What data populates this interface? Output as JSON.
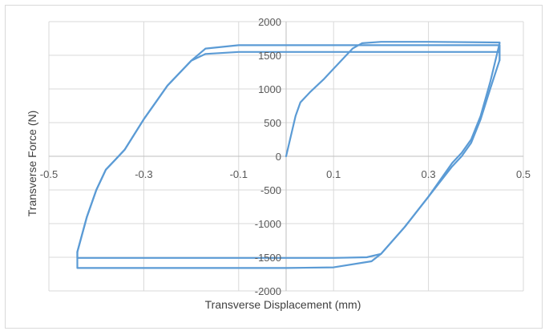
{
  "chart_data": {
    "type": "line",
    "title": "",
    "xlabel": "Transverse Displacement (mm)",
    "ylabel": "Transverse Force (N)",
    "xlim": [
      -0.5,
      0.5
    ],
    "ylim": [
      -2000,
      2000
    ],
    "x_ticks": [
      -0.5,
      -0.3,
      -0.1,
      0.1,
      0.3,
      0.5
    ],
    "x_tick_labels": [
      "-0.5",
      "-0.3",
      "-0.1",
      "0.1",
      "0.3",
      "0.5"
    ],
    "y_ticks": [
      -2000,
      -1500,
      -1000,
      -500,
      0,
      500,
      1000,
      1500,
      2000
    ],
    "y_tick_labels": [
      "-2000",
      "-1500",
      "-1000",
      "-500",
      "0",
      "500",
      "1000",
      "1500",
      "2000"
    ],
    "grid": true,
    "legend": "none",
    "color": "#5b9bd5",
    "series": [
      {
        "x": [
          0,
          0.01,
          0.02,
          0.03,
          0.05,
          0.08,
          0.1,
          0.12,
          0.14,
          0.16,
          0.2,
          0.3,
          0.45
        ],
        "y": [
          0,
          300,
          600,
          800,
          950,
          1150,
          1300,
          1450,
          1600,
          1680,
          1700,
          1700,
          1690
        ]
      },
      {
        "x": [
          0.45,
          0.43,
          0.41,
          0.39,
          0.37,
          0.35,
          0.3,
          0.25,
          0.2,
          0.18,
          0.1,
          0,
          -0.2,
          -0.44,
          -0.44
        ],
        "y": [
          1680,
          1100,
          600,
          250,
          50,
          -100,
          -600,
          -1050,
          -1450,
          -1560,
          -1650,
          -1660,
          -1660,
          -1660,
          -1420
        ]
      },
      {
        "x": [
          -0.44,
          -0.42,
          -0.4,
          -0.38,
          -0.36,
          -0.34,
          -0.3,
          -0.25,
          -0.2,
          -0.17,
          -0.1,
          0.1,
          0.3,
          0.45,
          0.45
        ],
        "y": [
          -1420,
          -900,
          -500,
          -200,
          -50,
          100,
          550,
          1050,
          1420,
          1520,
          1550,
          1550,
          1550,
          1550,
          1430
        ]
      },
      {
        "x": [
          0.45,
          0.43,
          0.41,
          0.39,
          0.37,
          0.35,
          0.3,
          0.25,
          0.2,
          0.17,
          0.1,
          0,
          -0.2,
          -0.44,
          -0.44
        ],
        "y": [
          1430,
          1000,
          550,
          200,
          0,
          -150,
          -600,
          -1050,
          -1450,
          -1500,
          -1510,
          -1510,
          -1510,
          -1510,
          -1420
        ]
      },
      {
        "x": [
          -0.44,
          -0.42,
          -0.4,
          -0.38,
          -0.36,
          -0.34,
          -0.3,
          -0.25,
          -0.2,
          -0.17,
          -0.1,
          0.1,
          0.3,
          0.45,
          0.45
        ],
        "y": [
          -1420,
          -900,
          -500,
          -200,
          -50,
          100,
          550,
          1050,
          1420,
          1600,
          1650,
          1650,
          1650,
          1650,
          1430
        ]
      }
    ]
  }
}
